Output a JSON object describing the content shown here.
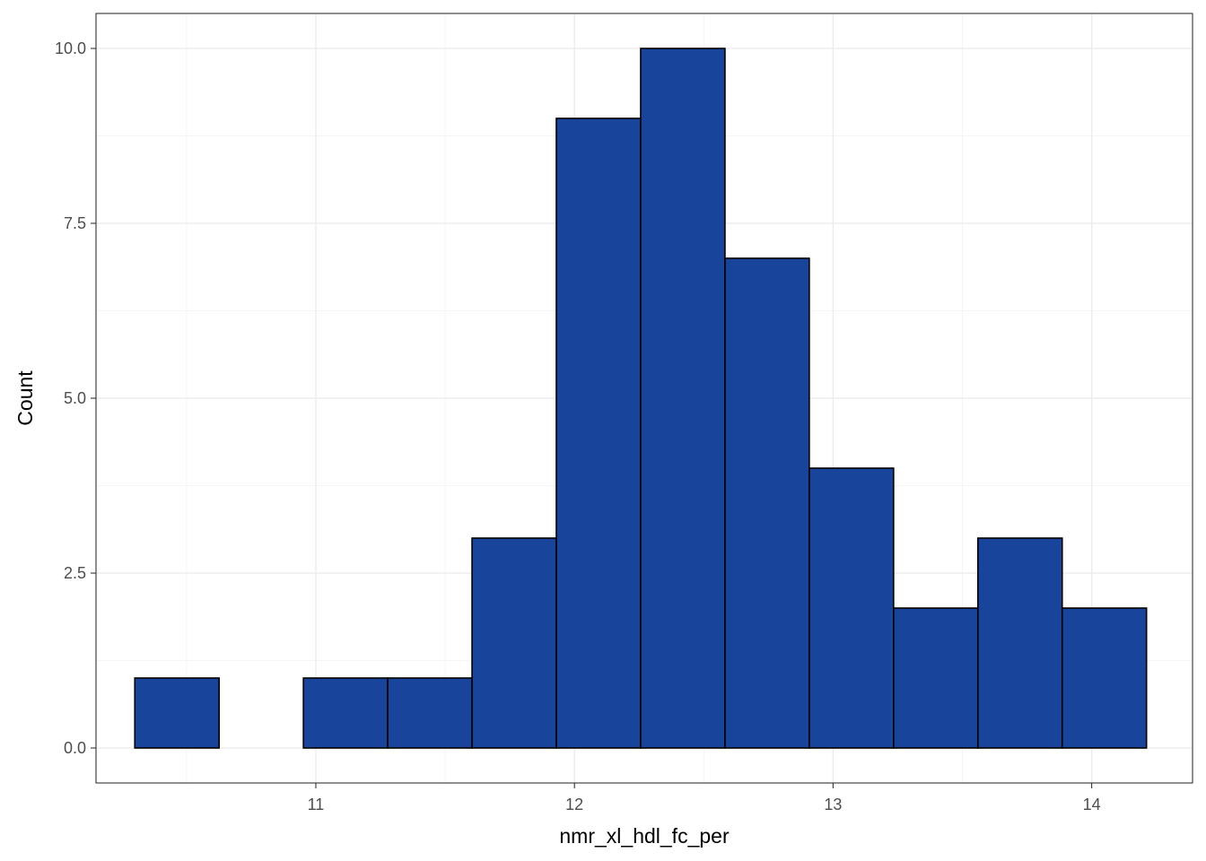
{
  "chart_data": {
    "type": "bar",
    "subtype": "histogram",
    "xlabel": "nmr_xl_hdl_fc_per",
    "ylabel": "Count",
    "xlim": [
      10.15,
      14.39
    ],
    "ylim": [
      -0.5,
      10.5
    ],
    "x_ticks": [
      11,
      12,
      13,
      14
    ],
    "x_tick_labels": [
      "11",
      "12",
      "13",
      "14"
    ],
    "y_ticks": [
      0,
      2.5,
      5,
      7.5,
      10
    ],
    "y_tick_labels": [
      "0.0",
      "2.5",
      "5.0",
      "7.5",
      "10.0"
    ],
    "bin_edges": [
      10.3,
      10.626,
      10.952,
      11.278,
      11.604,
      11.93,
      12.256,
      12.582,
      12.908,
      13.234,
      13.56,
      13.886,
      14.212
    ],
    "counts": [
      1,
      0,
      1,
      1,
      3,
      9,
      10,
      7,
      4,
      2,
      3,
      2
    ],
    "grid": true,
    "legend": "none",
    "colors": {
      "bar_fill": "#18449b",
      "bar_stroke": "#000000",
      "grid_major": "#ebebeb",
      "grid_minor": "#f5f5f5",
      "panel_border": "#333333"
    }
  }
}
